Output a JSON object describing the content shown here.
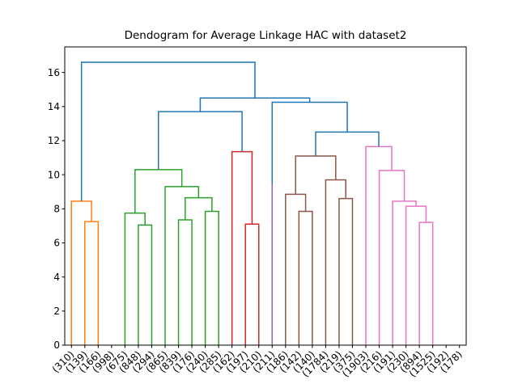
{
  "chart_data": {
    "type": "dendrogram",
    "title": "Dendogram for Average Linkage HAC with dataset2",
    "ylim": [
      0,
      17.5
    ],
    "yticks": [
      0,
      2,
      4,
      6,
      8,
      10,
      12,
      14,
      16
    ],
    "leaf_labels": [
      "(310)",
      "(139)",
      "(166)",
      "(998)",
      "(675)",
      "(848)",
      "(294)",
      "(865)",
      "(839)",
      "(176)",
      "(240)",
      "(285)",
      "(162)",
      "(197)",
      "(210)",
      "(211)",
      "(186)",
      "(142)",
      "(140)",
      "(1784)",
      "(219)",
      "(375)",
      "(1903)",
      "(216)",
      "(191)",
      "(230)",
      "(894)",
      "(1525)",
      "(192)",
      "(178)"
    ],
    "colors": {
      "orange": "#ff7f0e",
      "green": "#2ca02c",
      "red": "#d62728",
      "purple": "#9467bd",
      "brown": "#8c564b",
      "pink": "#e377c2",
      "blue": "#1f77b4"
    },
    "merges": [
      {
        "left": 2,
        "right": 3,
        "height": 7.25,
        "color": "orange"
      },
      {
        "left": 1,
        "right": 2.5,
        "height": 8.45,
        "color": "orange"
      },
      {
        "left": 6,
        "right": 7,
        "height": 7.05,
        "color": "green"
      },
      {
        "left": 5,
        "right": 6.5,
        "height": 7.75,
        "color": "green"
      },
      {
        "left": 9,
        "right": 10,
        "height": 7.35,
        "color": "green"
      },
      {
        "left": 11,
        "right": 12,
        "height": 7.85,
        "color": "green"
      },
      {
        "left": 9.5,
        "right": 11.5,
        "height": 8.65,
        "color": "green"
      },
      {
        "left": 8,
        "right": 10.5,
        "height": 9.3,
        "color": "green"
      },
      {
        "left": 5.75,
        "right": 9.25,
        "height": 10.3,
        "color": "green"
      },
      {
        "left": 14,
        "right": 15,
        "height": 7.1,
        "color": "red"
      },
      {
        "left": 13,
        "right": 14.5,
        "height": 11.35,
        "color": "red"
      },
      {
        "left": 18,
        "right": 19,
        "height": 7.85,
        "color": "brown"
      },
      {
        "left": 17,
        "right": 18.5,
        "height": 8.85,
        "color": "brown"
      },
      {
        "left": 21,
        "right": 22,
        "height": 8.6,
        "color": "brown"
      },
      {
        "left": 20,
        "right": 21.5,
        "height": 9.7,
        "color": "brown"
      },
      {
        "left": 17.75,
        "right": 20.75,
        "height": 11.1,
        "color": "brown"
      },
      {
        "left": 27,
        "right": 28,
        "height": 7.2,
        "color": "pink"
      },
      {
        "left": 26,
        "right": 27.5,
        "height": 8.15,
        "color": "pink"
      },
      {
        "left": 25,
        "right": 26.75,
        "height": 8.45,
        "color": "pink"
      },
      {
        "left": 24,
        "right": 25.875,
        "height": 10.25,
        "color": "pink"
      },
      {
        "left": 23,
        "right": 24.9375,
        "height": 11.65,
        "color": "pink"
      },
      {
        "left": 19.25,
        "right": 23.96875,
        "height": 12.5,
        "color": "blue"
      },
      {
        "left": 16,
        "right": 21.609375,
        "height": 14.25,
        "color": "blue"
      },
      {
        "left": 7.5,
        "right": 13.75,
        "height": 13.7,
        "color": "blue"
      },
      {
        "left": 10.625,
        "right": 18.8046875,
        "height": 14.5,
        "color": "blue"
      },
      {
        "left": 1.75,
        "right": 14.71484375,
        "height": 16.6,
        "color": "blue"
      }
    ],
    "leaf_links": [
      {
        "x": 16,
        "top": 9.45,
        "color": "purple"
      }
    ],
    "grid": false,
    "xtick_rotation": 45
  }
}
